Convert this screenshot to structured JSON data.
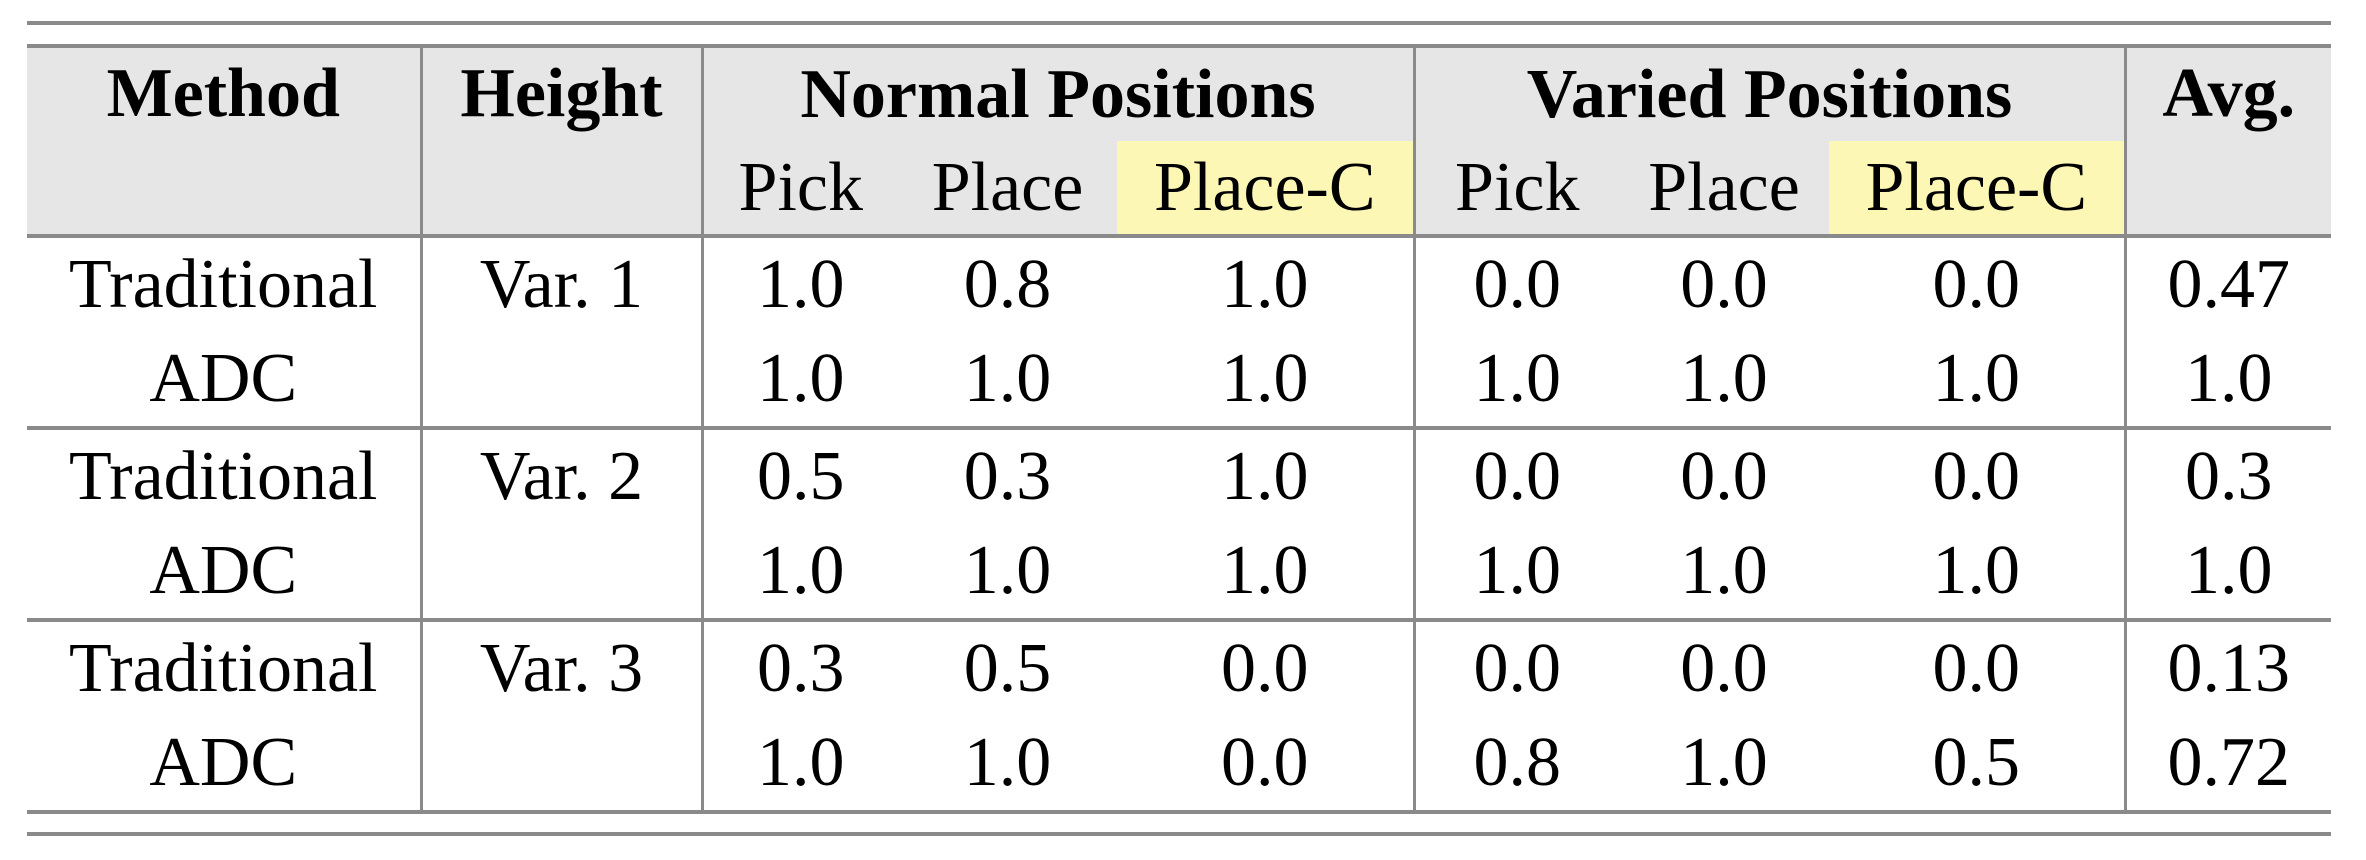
{
  "header": {
    "method": "Method",
    "height": "Height",
    "normal_group": "Normal Positions",
    "varied_group": "Varied Positions",
    "avg": "Avg.",
    "sub": [
      "Pick",
      "Place",
      "Place-C",
      "Pick",
      "Place",
      "Place-C"
    ]
  },
  "colors": {
    "header_bg": "#e6e6e6",
    "highlight": "#fdf7b6",
    "rules": "#8a8a8a"
  },
  "groups": [
    {
      "height": "Var. 1",
      "rows": [
        {
          "method": "Traditional",
          "values": [
            "1.0",
            "0.8",
            "1.0",
            "0.0",
            "0.0",
            "0.0"
          ],
          "avg": "0.47"
        },
        {
          "method": "ADC",
          "values": [
            "1.0",
            "1.0",
            "1.0",
            "1.0",
            "1.0",
            "1.0"
          ],
          "avg": "1.0"
        }
      ]
    },
    {
      "height": "Var. 2",
      "rows": [
        {
          "method": "Traditional",
          "values": [
            "0.5",
            "0.3",
            "1.0",
            "0.0",
            "0.0",
            "0.0"
          ],
          "avg": "0.3"
        },
        {
          "method": "ADC",
          "values": [
            "1.0",
            "1.0",
            "1.0",
            "1.0",
            "1.0",
            "1.0"
          ],
          "avg": "1.0"
        }
      ]
    },
    {
      "height": "Var. 3",
      "rows": [
        {
          "method": "Traditional",
          "values": [
            "0.3",
            "0.5",
            "0.0",
            "0.0",
            "0.0",
            "0.0"
          ],
          "avg": "0.13"
        },
        {
          "method": "ADC",
          "values": [
            "1.0",
            "1.0",
            "0.0",
            "0.8",
            "1.0",
            "0.5"
          ],
          "avg": "0.72"
        }
      ]
    }
  ]
}
